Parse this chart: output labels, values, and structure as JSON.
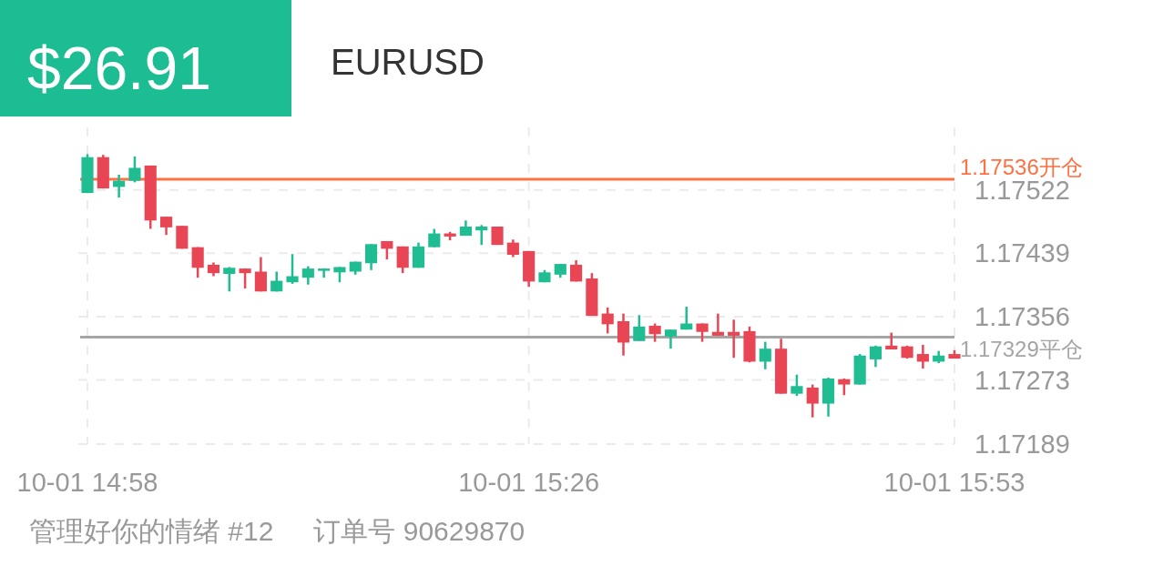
{
  "chart_data": {
    "type": "candlestick",
    "title": "$26.91",
    "subtitle": "EURUSD",
    "annotations": [
      "管理好你的情绪 #12",
      "订单号 90629870"
    ],
    "categories": [
      "10-01 14:58",
      null,
      null,
      null,
      null,
      null,
      null,
      null,
      null,
      null,
      null,
      null,
      null,
      null,
      null,
      null,
      null,
      null,
      null,
      null,
      null,
      null,
      null,
      null,
      null,
      null,
      null,
      null,
      "10-01 15:26",
      null,
      null,
      null,
      null,
      null,
      null,
      null,
      null,
      null,
      null,
      null,
      null,
      null,
      null,
      null,
      null,
      null,
      null,
      null,
      null,
      null,
      null,
      null,
      null,
      null,
      null,
      "10-01 15:53"
    ],
    "ohlc": [
      [
        1.17518,
        1.17569,
        1.17518,
        1.17565
      ],
      [
        1.17565,
        1.17568,
        1.17524,
        1.17524
      ],
      [
        1.17526,
        1.17542,
        1.17512,
        1.17534
      ],
      [
        1.17534,
        1.17566,
        1.17532,
        1.17551
      ],
      [
        1.17554,
        1.17554,
        1.17471,
        1.17482
      ],
      [
        1.17487,
        1.17487,
        1.17463,
        1.17473
      ],
      [
        1.17475,
        1.17475,
        1.17445,
        1.17445
      ],
      [
        1.17447,
        1.17447,
        1.17407,
        1.1742
      ],
      [
        1.17424,
        1.17427,
        1.17409,
        1.17413
      ],
      [
        1.17412,
        1.17421,
        1.17389,
        1.1742
      ],
      [
        1.17419,
        1.17419,
        1.17393,
        1.17413
      ],
      [
        1.17415,
        1.17434,
        1.17389,
        1.17389
      ],
      [
        1.17389,
        1.17415,
        1.17389,
        1.17403
      ],
      [
        1.17401,
        1.17438,
        1.17399,
        1.17409
      ],
      [
        1.17407,
        1.17422,
        1.17398,
        1.17419
      ],
      [
        1.17416,
        1.17419,
        1.17407,
        1.17419
      ],
      [
        1.17414,
        1.17421,
        1.17401,
        1.17421
      ],
      [
        1.17415,
        1.17428,
        1.17411,
        1.17428
      ],
      [
        1.17426,
        1.17451,
        1.17417,
        1.17451
      ],
      [
        1.17455,
        1.17455,
        1.17431,
        1.17445
      ],
      [
        1.17448,
        1.17448,
        1.17413,
        1.1742
      ],
      [
        1.1742,
        1.17453,
        1.1742,
        1.17448
      ],
      [
        1.17447,
        1.17471,
        1.17447,
        1.17465
      ],
      [
        1.17465,
        1.17467,
        1.17456,
        1.17461
      ],
      [
        1.17462,
        1.17482,
        1.17462,
        1.17474
      ],
      [
        1.17469,
        1.17476,
        1.1745,
        1.17474
      ],
      [
        1.17474,
        1.17474,
        1.1745,
        1.1745
      ],
      [
        1.17453,
        1.17457,
        1.17434,
        1.17437
      ],
      [
        1.17442,
        1.17442,
        1.17395,
        1.17402
      ],
      [
        1.17401,
        1.17417,
        1.17401,
        1.17414
      ],
      [
        1.17411,
        1.17425,
        1.17407,
        1.17425
      ],
      [
        1.17424,
        1.1743,
        1.17402,
        1.17402
      ],
      [
        1.17406,
        1.17413,
        1.17357,
        1.17357
      ],
      [
        1.1736,
        1.17368,
        1.17334,
        1.17346
      ],
      [
        1.1735,
        1.1736,
        1.17305,
        1.17322
      ],
      [
        1.17324,
        1.17358,
        1.17324,
        1.17343
      ],
      [
        1.17344,
        1.17347,
        1.17323,
        1.17333
      ],
      [
        1.1733,
        1.17339,
        1.17314,
        1.17339
      ],
      [
        1.17339,
        1.17369,
        1.17339,
        1.17347
      ],
      [
        1.17347,
        1.17347,
        1.17323,
        1.17336
      ],
      [
        1.17336,
        1.1736,
        1.17331,
        1.17331
      ],
      [
        1.17336,
        1.17352,
        1.17302,
        1.17331
      ],
      [
        1.17337,
        1.17343,
        1.17296,
        1.17297
      ],
      [
        1.17297,
        1.17323,
        1.17287,
        1.17314
      ],
      [
        1.17314,
        1.17327,
        1.17255,
        1.17255
      ],
      [
        1.17255,
        1.1728,
        1.17252,
        1.17265
      ],
      [
        1.17263,
        1.17267,
        1.17224,
        1.17242
      ],
      [
        1.17242,
        1.17276,
        1.17225,
        1.17275
      ],
      [
        1.17274,
        1.17275,
        1.17253,
        1.17267
      ],
      [
        1.17267,
        1.17307,
        1.17267,
        1.17305
      ],
      [
        1.173,
        1.17318,
        1.1729,
        1.17317
      ],
      [
        1.17318,
        1.17335,
        1.17313,
        1.17313
      ],
      [
        1.17317,
        1.17318,
        1.17301,
        1.17302
      ],
      [
        1.17307,
        1.17319,
        1.17288,
        1.17297
      ],
      [
        1.17297,
        1.17311,
        1.17295,
        1.17305
      ],
      [
        1.17307,
        1.17312,
        1.17301,
        1.17301
      ]
    ],
    "colors": [
      "#20bd93",
      "#e94655",
      "#20bd93",
      "#20bd93",
      "#e94655",
      "#e94655",
      "#e94655",
      "#e94655",
      "#e94655",
      "#20bd93",
      "#e94655",
      "#e94655",
      "#20bd93",
      "#20bd93",
      "#20bd93",
      "#20bd93",
      "#20bd93",
      "#20bd93",
      "#20bd93",
      "#e94655",
      "#e94655",
      "#20bd93",
      "#20bd93",
      "#e94655",
      "#20bd93",
      "#20bd93",
      "#e94655",
      "#e94655",
      "#e94655",
      "#20bd93",
      "#20bd93",
      "#e94655",
      "#e94655",
      "#e94655",
      "#e94655",
      "#20bd93",
      "#e94655",
      "#20bd93",
      "#20bd93",
      "#e94655",
      "#e94655",
      "#e94655",
      "#e94655",
      "#20bd93",
      "#e94655",
      "#20bd93",
      "#e94655",
      "#20bd93",
      "#e94655",
      "#20bd93",
      "#20bd93",
      "#e94655",
      "#e94655",
      "#e94655",
      "#20bd93",
      "#e94655"
    ],
    "ylim": [
      1.17189,
      1.17604
    ],
    "yticks": [
      1.17522,
      1.17439,
      1.17356,
      1.17273,
      1.17189
    ],
    "grid": true,
    "ref_lines": [
      {
        "axis": "y",
        "value": 1.17536,
        "label": "1.17536开仓",
        "color": "#ff7043"
      },
      {
        "axis": "y",
        "value": 1.17329,
        "label": "1.17329平仓",
        "color": "#a5a5a5"
      }
    ]
  }
}
